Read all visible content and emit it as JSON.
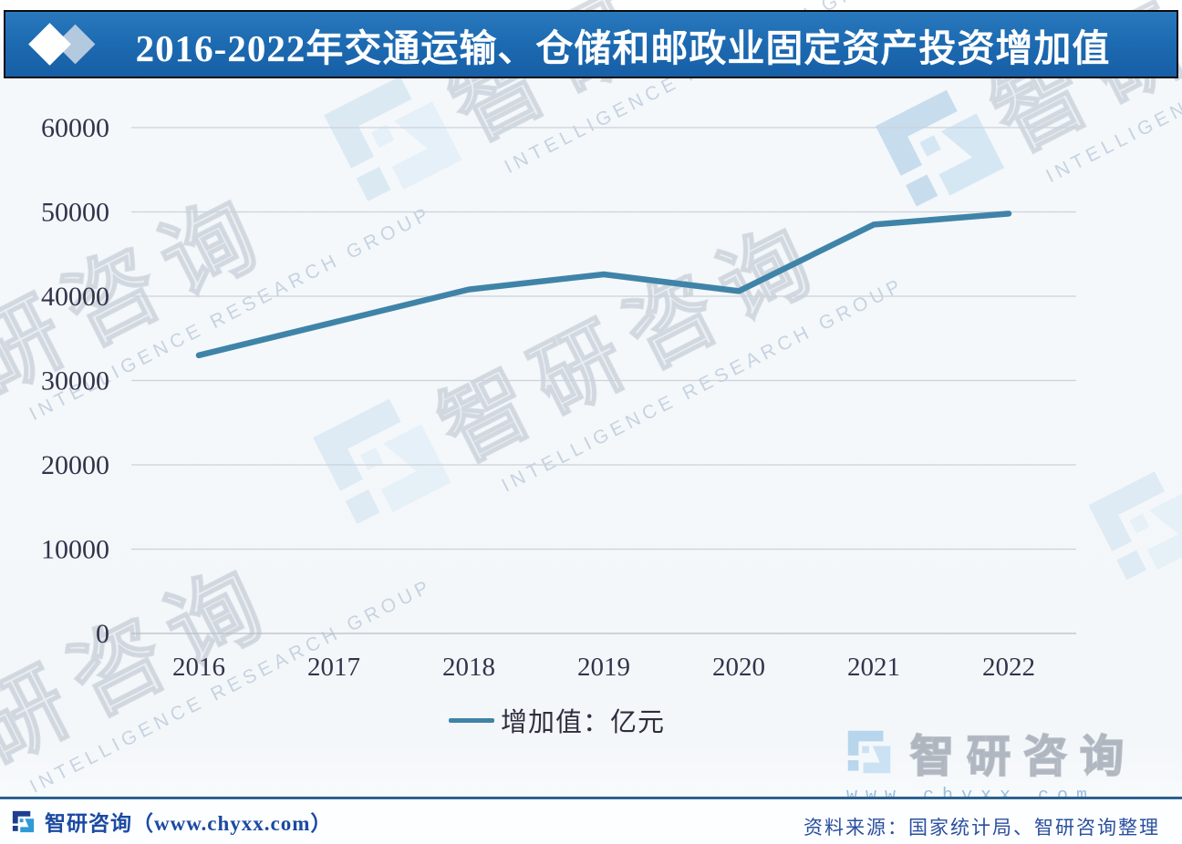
{
  "title": "2016-2022年交通运输、仓储和邮政业固定资产投资增加值",
  "chart_data": {
    "type": "line",
    "title": "2016-2022年交通运输、仓储和邮政业固定资产投资增加值",
    "categories": [
      "2016",
      "2017",
      "2018",
      "2019",
      "2020",
      "2021",
      "2022"
    ],
    "series": [
      {
        "name": "增加值：亿元",
        "values": [
          33000,
          36900,
          40800,
          42600,
          40600,
          48500,
          49800
        ]
      }
    ],
    "xlabel": "",
    "ylabel": "",
    "ylim": [
      0,
      60000
    ],
    "ytick_step": 10000,
    "yticks": [
      "0",
      "10000",
      "20000",
      "30000",
      "40000",
      "50000",
      "60000"
    ],
    "grid": true,
    "legend_position": "bottom",
    "legend_label": "增加值：亿元"
  },
  "legend": {
    "label": "增加值：亿元"
  },
  "footer": {
    "brand": "智研咨询（www.chyxx.com）",
    "source": "资料来源：国家统计局、智研咨询整理"
  },
  "watermark": {
    "brand_cn": "智研咨询",
    "brand_cn_short": "智研",
    "partial_cn": "研咨询",
    "brand_en": "INTELLIGENCE RESEARCH GROUP",
    "url": "www.chyxx.com"
  },
  "colors": {
    "banner_blue": "#1d6bb2",
    "line": "#3f84a8",
    "grid": "#ccd2d9",
    "axis": "#b7bec7",
    "tick_text": "#33334a",
    "legend_text": "#2e2e3e",
    "footer_brand": "#1c4aa2",
    "footer_source": "#2a4f9f",
    "divider": "#2c6292"
  }
}
